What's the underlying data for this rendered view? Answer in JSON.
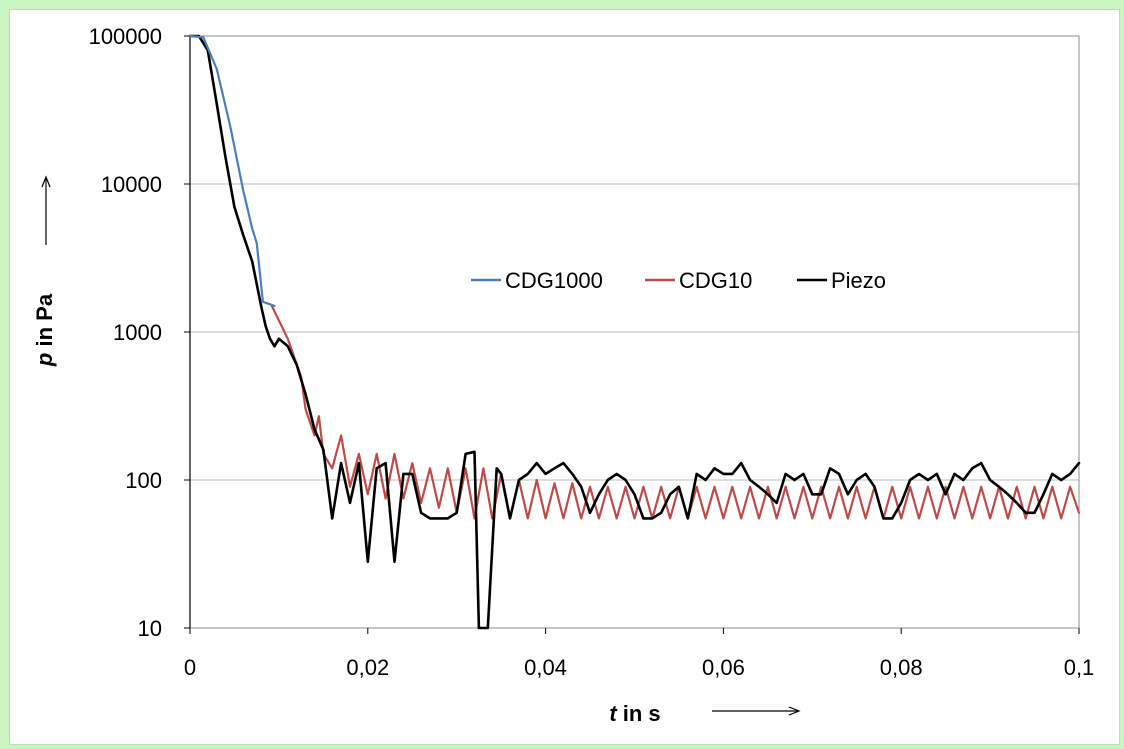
{
  "chart_data": {
    "type": "line",
    "title": "",
    "ylabel": {
      "var": "p",
      "rest": " in Pa"
    },
    "xlabel": {
      "var": "t",
      "rest": " in s"
    },
    "x_tick_labels": [
      "0",
      "0,02",
      "0,04",
      "0,06",
      "0,08",
      "0,1"
    ],
    "y_tick_labels": [
      "100000",
      "10000",
      "1000",
      "100",
      "10"
    ],
    "xlim": [
      0,
      0.1
    ],
    "ylim": [
      10,
      100000
    ],
    "yscale": "log",
    "grid": "horizontal",
    "legend_position": "center-right",
    "series": [
      {
        "name": "CDG1000",
        "color": "#4a7ebb",
        "points": [
          [
            0,
            100000
          ],
          [
            0.0015,
            98000
          ],
          [
            0.003,
            60000
          ],
          [
            0.0045,
            25000
          ],
          [
            0.006,
            9000
          ],
          [
            0.007,
            5000
          ],
          [
            0.0075,
            4000
          ],
          [
            0.0082,
            1600
          ],
          [
            0.0095,
            1500
          ]
        ]
      },
      {
        "name": "CDG10",
        "color": "#be4b48",
        "points": [
          [
            0.0092,
            1500
          ],
          [
            0.011,
            900
          ],
          [
            0.0125,
            500
          ],
          [
            0.013,
            300
          ],
          [
            0.014,
            200
          ],
          [
            0.0145,
            270
          ],
          [
            0.015,
            150
          ],
          [
            0.016,
            120
          ],
          [
            0.017,
            200
          ],
          [
            0.018,
            90
          ],
          [
            0.019,
            150
          ],
          [
            0.02,
            80
          ],
          [
            0.021,
            150
          ],
          [
            0.022,
            75
          ],
          [
            0.023,
            150
          ],
          [
            0.024,
            75
          ],
          [
            0.025,
            130
          ],
          [
            0.026,
            70
          ],
          [
            0.027,
            120
          ],
          [
            0.028,
            65
          ],
          [
            0.029,
            120
          ],
          [
            0.03,
            60
          ],
          [
            0.031,
            120
          ],
          [
            0.032,
            55
          ],
          [
            0.033,
            120
          ],
          [
            0.034,
            55
          ],
          [
            0.035,
            110
          ],
          [
            0.036,
            55
          ],
          [
            0.037,
            100
          ],
          [
            0.038,
            55
          ],
          [
            0.039,
            100
          ],
          [
            0.04,
            55
          ],
          [
            0.041,
            95
          ],
          [
            0.042,
            55
          ],
          [
            0.043,
            95
          ],
          [
            0.044,
            55
          ],
          [
            0.045,
            90
          ],
          [
            0.046,
            55
          ],
          [
            0.047,
            90
          ],
          [
            0.048,
            55
          ],
          [
            0.049,
            90
          ],
          [
            0.05,
            55
          ],
          [
            0.051,
            90
          ],
          [
            0.052,
            55
          ],
          [
            0.053,
            90
          ],
          [
            0.054,
            55
          ],
          [
            0.055,
            90
          ],
          [
            0.056,
            55
          ],
          [
            0.057,
            90
          ],
          [
            0.058,
            55
          ],
          [
            0.059,
            90
          ],
          [
            0.06,
            55
          ],
          [
            0.061,
            90
          ],
          [
            0.062,
            55
          ],
          [
            0.063,
            90
          ],
          [
            0.064,
            55
          ],
          [
            0.065,
            90
          ],
          [
            0.066,
            55
          ],
          [
            0.067,
            90
          ],
          [
            0.068,
            55
          ],
          [
            0.069,
            90
          ],
          [
            0.07,
            55
          ],
          [
            0.071,
            90
          ],
          [
            0.072,
            55
          ],
          [
            0.073,
            90
          ],
          [
            0.074,
            55
          ],
          [
            0.075,
            90
          ],
          [
            0.076,
            55
          ],
          [
            0.077,
            90
          ],
          [
            0.078,
            55
          ],
          [
            0.079,
            90
          ],
          [
            0.08,
            55
          ],
          [
            0.081,
            90
          ],
          [
            0.082,
            55
          ],
          [
            0.083,
            90
          ],
          [
            0.084,
            55
          ],
          [
            0.085,
            90
          ],
          [
            0.086,
            55
          ],
          [
            0.087,
            90
          ],
          [
            0.088,
            55
          ],
          [
            0.089,
            90
          ],
          [
            0.09,
            55
          ],
          [
            0.091,
            90
          ],
          [
            0.092,
            55
          ],
          [
            0.093,
            90
          ],
          [
            0.094,
            55
          ],
          [
            0.095,
            90
          ],
          [
            0.096,
            55
          ],
          [
            0.097,
            90
          ],
          [
            0.098,
            55
          ],
          [
            0.099,
            90
          ],
          [
            0.1,
            60
          ]
        ]
      },
      {
        "name": "Piezo",
        "color": "#000000",
        "points": [
          [
            0,
            100000
          ],
          [
            0.001,
            100000
          ],
          [
            0.002,
            80000
          ],
          [
            0.003,
            35000
          ],
          [
            0.004,
            15000
          ],
          [
            0.005,
            7000
          ],
          [
            0.006,
            4500
          ],
          [
            0.007,
            3000
          ],
          [
            0.008,
            1500
          ],
          [
            0.0085,
            1100
          ],
          [
            0.009,
            900
          ],
          [
            0.0095,
            800
          ],
          [
            0.01,
            900
          ],
          [
            0.011,
            800
          ],
          [
            0.012,
            600
          ],
          [
            0.013,
            380
          ],
          [
            0.014,
            220
          ],
          [
            0.015,
            160
          ],
          [
            0.016,
            55
          ],
          [
            0.017,
            130
          ],
          [
            0.018,
            70
          ],
          [
            0.019,
            130
          ],
          [
            0.02,
            28
          ],
          [
            0.021,
            120
          ],
          [
            0.022,
            130
          ],
          [
            0.023,
            28
          ],
          [
            0.024,
            110
          ],
          [
            0.025,
            110
          ],
          [
            0.026,
            60
          ],
          [
            0.027,
            55
          ],
          [
            0.028,
            55
          ],
          [
            0.029,
            55
          ],
          [
            0.03,
            60
          ],
          [
            0.031,
            150
          ],
          [
            0.032,
            155
          ],
          [
            0.0325,
            10
          ],
          [
            0.0335,
            10
          ],
          [
            0.0345,
            120
          ],
          [
            0.035,
            110
          ],
          [
            0.036,
            55
          ],
          [
            0.037,
            100
          ],
          [
            0.038,
            110
          ],
          [
            0.039,
            130
          ],
          [
            0.04,
            110
          ],
          [
            0.041,
            120
          ],
          [
            0.042,
            130
          ],
          [
            0.043,
            110
          ],
          [
            0.044,
            90
          ],
          [
            0.045,
            60
          ],
          [
            0.046,
            80
          ],
          [
            0.047,
            100
          ],
          [
            0.048,
            110
          ],
          [
            0.049,
            100
          ],
          [
            0.05,
            80
          ],
          [
            0.051,
            55
          ],
          [
            0.052,
            55
          ],
          [
            0.053,
            60
          ],
          [
            0.054,
            80
          ],
          [
            0.055,
            90
          ],
          [
            0.056,
            55
          ],
          [
            0.057,
            110
          ],
          [
            0.058,
            100
          ],
          [
            0.059,
            120
          ],
          [
            0.06,
            110
          ],
          [
            0.061,
            110
          ],
          [
            0.062,
            130
          ],
          [
            0.063,
            100
          ],
          [
            0.064,
            90
          ],
          [
            0.065,
            80
          ],
          [
            0.066,
            70
          ],
          [
            0.067,
            110
          ],
          [
            0.068,
            100
          ],
          [
            0.069,
            110
          ],
          [
            0.07,
            80
          ],
          [
            0.071,
            80
          ],
          [
            0.072,
            120
          ],
          [
            0.073,
            110
          ],
          [
            0.074,
            80
          ],
          [
            0.075,
            100
          ],
          [
            0.076,
            110
          ],
          [
            0.077,
            90
          ],
          [
            0.078,
            55
          ],
          [
            0.079,
            55
          ],
          [
            0.08,
            70
          ],
          [
            0.081,
            100
          ],
          [
            0.082,
            110
          ],
          [
            0.083,
            100
          ],
          [
            0.084,
            110
          ],
          [
            0.085,
            80
          ],
          [
            0.086,
            110
          ],
          [
            0.087,
            100
          ],
          [
            0.088,
            120
          ],
          [
            0.089,
            130
          ],
          [
            0.09,
            100
          ],
          [
            0.091,
            90
          ],
          [
            0.092,
            80
          ],
          [
            0.093,
            70
          ],
          [
            0.094,
            60
          ],
          [
            0.095,
            60
          ],
          [
            0.096,
            80
          ],
          [
            0.097,
            110
          ],
          [
            0.098,
            100
          ],
          [
            0.099,
            110
          ],
          [
            0.1,
            130
          ]
        ]
      }
    ]
  }
}
